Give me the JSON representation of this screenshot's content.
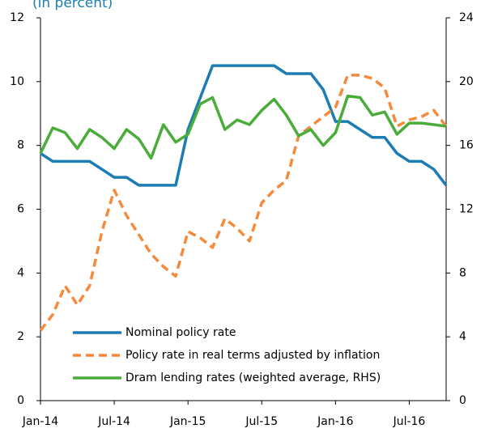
{
  "chart_data": {
    "type": "line",
    "subtitle": "(in percent)",
    "categories": [
      "Jan-14",
      null,
      null,
      null,
      null,
      null,
      "Jul-14",
      null,
      null,
      null,
      null,
      null,
      "Jan-15",
      null,
      null,
      null,
      null,
      null,
      "Jul-15",
      null,
      null,
      null,
      null,
      null,
      "Jan-16",
      null,
      null,
      null,
      null,
      null,
      "Jul-16",
      null,
      null,
      null
    ],
    "series": [
      {
        "name": "Nominal policy rate",
        "color": "#1b7db3",
        "dashed": false,
        "values": [
          7.75,
          7.5,
          7.5,
          7.5,
          7.5,
          7.25,
          7.0,
          7.0,
          6.75,
          6.75,
          6.75,
          6.75,
          8.5,
          9.5,
          10.5,
          10.5,
          10.5,
          10.5,
          10.5,
          10.5,
          10.25,
          10.25,
          10.25,
          9.75,
          8.75,
          8.75,
          8.5,
          8.25,
          8.25,
          7.75,
          7.5,
          7.5,
          7.25,
          6.75
        ]
      },
      {
        "name": "Policy rate in real terms adjusted by inflation",
        "color": "#f58a3c",
        "dashed": true,
        "values": [
          2.2,
          2.7,
          3.6,
          3.0,
          3.6,
          5.3,
          6.6,
          5.8,
          5.2,
          4.6,
          4.2,
          3.9,
          5.3,
          5.1,
          4.8,
          5.7,
          5.4,
          5.0,
          6.2,
          6.6,
          6.9,
          8.3,
          8.6,
          8.9,
          9.2,
          10.2,
          10.2,
          10.1,
          9.8,
          8.6,
          8.8,
          8.9,
          9.1,
          8.6
        ]
      },
      {
        "name": "Dram lending rates (weighted average, RHS)",
        "color": "#4aad3a",
        "dashed": false,
        "axis": "y2",
        "values": [
          15.5,
          17.1,
          16.8,
          15.8,
          17.0,
          16.5,
          15.8,
          17.0,
          16.4,
          15.2,
          17.3,
          16.2,
          16.7,
          18.6,
          19.0,
          17.0,
          17.6,
          17.3,
          18.2,
          18.9,
          17.9,
          16.6,
          17.0,
          16.0,
          16.8,
          19.1,
          19.0,
          17.9,
          18.1,
          16.7,
          17.4,
          17.4,
          17.3,
          17.2
        ]
      }
    ],
    "ylim": [
      0,
      12
    ],
    "yticks": [
      0,
      2,
      4,
      6,
      8,
      10,
      12
    ],
    "y2lim": [
      0,
      24
    ],
    "y2ticks": [
      0,
      4,
      8,
      12,
      16,
      20,
      24
    ],
    "grid": false,
    "legend": "bottom"
  }
}
